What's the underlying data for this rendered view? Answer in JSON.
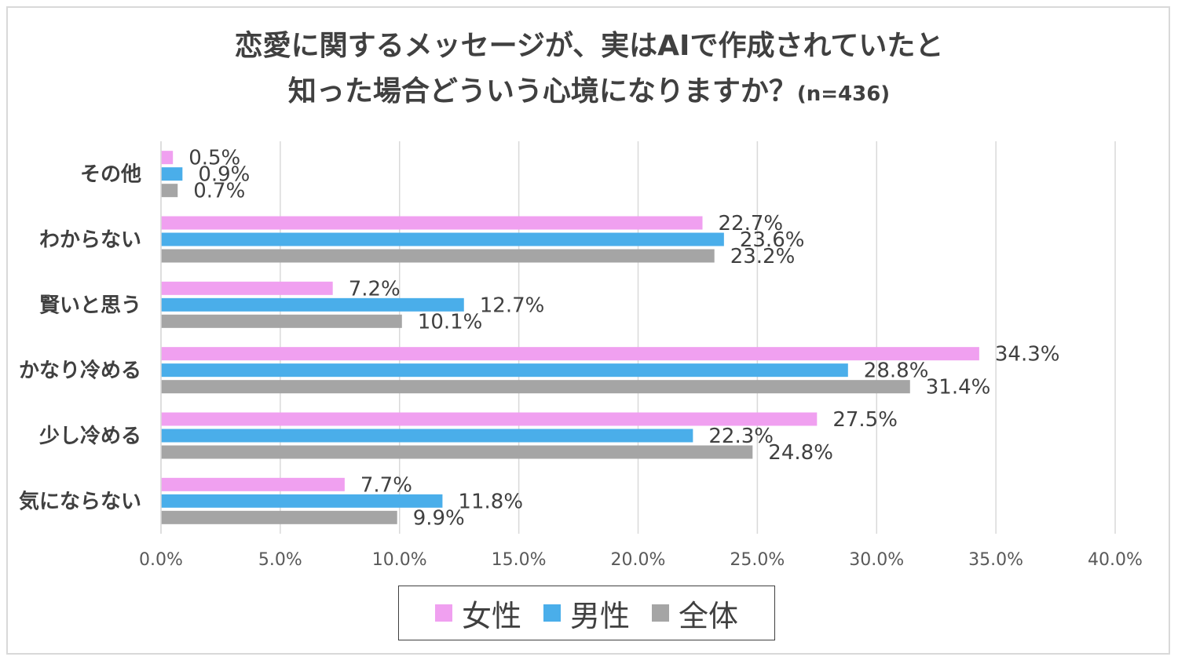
{
  "title": {
    "line1": "恋愛に関するメッセージが、実はAIで作成されていたと",
    "line2": "知った場合どういう心境になりますか？",
    "sample": "(n=436)"
  },
  "chart_data": {
    "type": "bar",
    "orientation": "horizontal",
    "categories": [
      "その他",
      "わからない",
      "賢いと思う",
      "かなり冷める",
      "少し冷める",
      "気にならない"
    ],
    "series": [
      {
        "name": "女性",
        "color": "#f0a0f0",
        "values": [
          0.5,
          22.7,
          7.2,
          34.3,
          27.5,
          7.7
        ]
      },
      {
        "name": "男性",
        "color": "#4aaeea",
        "values": [
          0.9,
          23.6,
          12.7,
          28.8,
          22.3,
          11.8
        ]
      },
      {
        "name": "全体",
        "color": "#a5a5a5",
        "values": [
          0.7,
          23.2,
          10.1,
          31.4,
          24.8,
          9.9
        ]
      }
    ],
    "xlim": [
      0,
      40
    ],
    "xticks": [
      "0.0%",
      "5.0%",
      "10.0%",
      "15.0%",
      "20.0%",
      "25.0%",
      "30.0%",
      "35.0%",
      "40.0%"
    ],
    "value_suffix": "%",
    "grid": "vertical",
    "legend_position": "bottom"
  },
  "legend": [
    {
      "label": "女性",
      "color": "#f0a0f0"
    },
    {
      "label": "男性",
      "color": "#4aaeea"
    },
    {
      "label": "全体",
      "color": "#a5a5a5"
    }
  ]
}
